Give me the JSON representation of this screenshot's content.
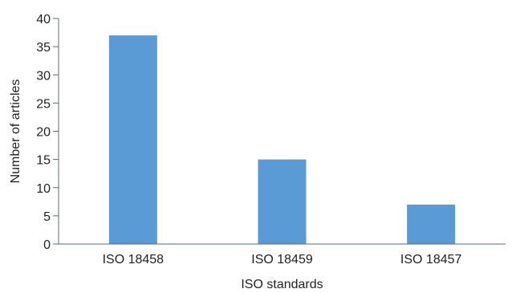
{
  "chart_data": {
    "type": "bar",
    "title": "",
    "xlabel": "ISO standards",
    "ylabel": "Number of articles",
    "categories": [
      "ISO 18458",
      "ISO 18459",
      "ISO 18457"
    ],
    "values": [
      37,
      15,
      7
    ],
    "ylim": [
      0,
      40
    ],
    "yticks": [
      0,
      5,
      10,
      15,
      20,
      25,
      30,
      35,
      40
    ],
    "grid": false,
    "legend": "none",
    "bar_color": "#5b9bd5"
  }
}
